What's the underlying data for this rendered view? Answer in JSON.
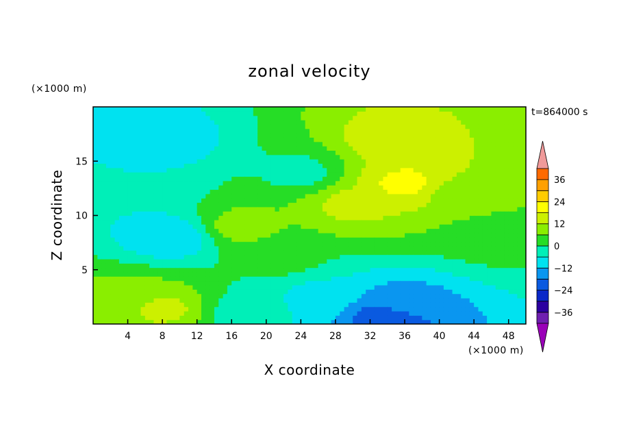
{
  "chart_data": {
    "type": "heatmap",
    "title": "zonal velocity",
    "xlabel": "X coordinate",
    "ylabel": "Z coordinate",
    "x_unit": "(×1000 m)",
    "y_unit": "(×1000 m)",
    "time_label": "t=864000 s",
    "xlim": [
      0,
      50
    ],
    "ylim": [
      0,
      20
    ],
    "x_ticks": [
      4,
      8,
      12,
      16,
      20,
      24,
      28,
      32,
      36,
      40,
      44,
      48
    ],
    "y_ticks": [
      5,
      10,
      15
    ],
    "levels": [
      -42,
      -36,
      -30,
      -24,
      -18,
      -12,
      -6,
      0,
      6,
      12,
      18,
      24,
      30,
      36,
      42
    ],
    "colorbar_ticks": [
      36,
      24,
      12,
      0,
      -12,
      -24,
      -36
    ],
    "colors": [
      "#9a00b8",
      "#6f1fb0",
      "#2c00a0",
      "#0a28c8",
      "#0a5ae0",
      "#0a96f0",
      "#00e2f0",
      "#00efb8",
      "#26dd26",
      "#8aee00",
      "#ccf000",
      "#ffff00",
      "#ffcc00",
      "#ffa000",
      "#ff6a00",
      "#ff2800",
      "#f09a9a"
    ],
    "field_features": [
      {
        "x": 36,
        "z": 13,
        "u": 20
      },
      {
        "x": 34,
        "z": 17,
        "u": 15
      },
      {
        "x": 30,
        "z": 11,
        "u": 14
      },
      {
        "x": 42,
        "z": 12,
        "u": 10
      },
      {
        "x": 9,
        "z": 8,
        "u": -12
      },
      {
        "x": 8,
        "z": 17,
        "u": -10
      },
      {
        "x": 4,
        "z": 13,
        "u": -6
      },
      {
        "x": 34,
        "z": 0.5,
        "u": -24
      },
      {
        "x": 36,
        "z": 2,
        "u": -14
      },
      {
        "x": 26,
        "z": 2.5,
        "u": -8
      },
      {
        "x": 18,
        "z": 1,
        "u": -4
      },
      {
        "x": 8,
        "z": 1.5,
        "u": 14
      },
      {
        "x": 4,
        "z": 2.5,
        "u": 8
      },
      {
        "x": 17,
        "z": 9,
        "u": 9
      },
      {
        "x": 22,
        "z": 6,
        "u": 2
      },
      {
        "x": 46,
        "z": 8,
        "u": 2
      },
      {
        "x": 24,
        "z": 14,
        "u": -2
      }
    ]
  }
}
